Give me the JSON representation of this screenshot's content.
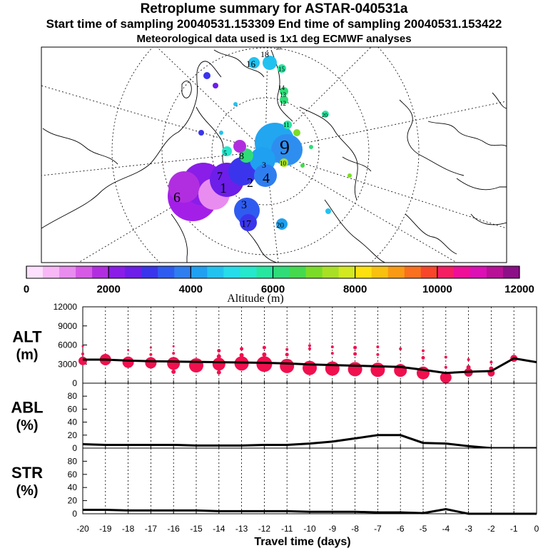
{
  "titles": {
    "main": "Retroplume summary for ASTAR-040531a",
    "sampling": "Start time of sampling 20040531.153309      End time of sampling 20040531.153422",
    "meteo": "Meteorological data used is 1x1 deg ECMWF analyses"
  },
  "colors": {
    "colorbar": [
      "#fde0fd",
      "#f8b8f6",
      "#e98cf0",
      "#d65ae6",
      "#b12ee0",
      "#8a1de8",
      "#6d1ee8",
      "#3a35ec",
      "#2f5cf0",
      "#2e7ef0",
      "#1fa0f0",
      "#22c2f0",
      "#26dcea",
      "#25e8cc",
      "#27e6a0",
      "#2fdc78",
      "#45d94e",
      "#7bdc28",
      "#a8e025",
      "#d2e820",
      "#fde10f",
      "#f8c00f",
      "#f99a14",
      "#f9701e",
      "#f7462a",
      "#f51e62",
      "#ee0e98",
      "#dc10b4",
      "#b91098",
      "#8c0f88"
    ],
    "altitude_dots": "#f0104e",
    "line": "#000000"
  },
  "colorbar": {
    "ticks": [
      "0",
      "2000",
      "4000",
      "6000",
      "8000",
      "10000",
      "12000"
    ],
    "label": "Altitude (m)"
  },
  "map": {
    "labels": [
      {
        "id": "m1",
        "text": "1"
      },
      {
        "id": "m2",
        "text": "2"
      },
      {
        "id": "m3",
        "text": "3"
      },
      {
        "id": "m4",
        "text": "4"
      },
      {
        "id": "m5",
        "text": "5"
      },
      {
        "id": "m6",
        "text": "6"
      },
      {
        "id": "m7",
        "text": "7"
      },
      {
        "id": "m8",
        "text": "8"
      },
      {
        "id": "m9",
        "text": "9"
      },
      {
        "id": "m10",
        "text": "10"
      },
      {
        "id": "m11",
        "text": "11"
      },
      {
        "id": "m12",
        "text": "12"
      },
      {
        "id": "m13",
        "text": "13"
      },
      {
        "id": "m14",
        "text": "14"
      },
      {
        "id": "m15",
        "text": "15"
      },
      {
        "id": "m16",
        "text": "16"
      },
      {
        "id": "m17",
        "text": "17"
      },
      {
        "id": "m18",
        "text": "18"
      },
      {
        "id": "m19",
        "text": "19"
      },
      {
        "id": "m20",
        "text": "20"
      }
    ]
  },
  "chart_data": [
    {
      "type": "scatter",
      "panel": "ALT",
      "ylabel": "ALT\n(m)",
      "ylabel_lines": [
        "ALT",
        "(m)"
      ],
      "ylim": [
        0,
        12000
      ],
      "yticks": [
        "0",
        "3000",
        "6000",
        "9000",
        "12000"
      ],
      "x": [
        -20,
        -19,
        -18,
        -17,
        -16,
        -15,
        -14,
        -13,
        -12,
        -11,
        -10,
        -9,
        -8,
        -7,
        -6,
        -5,
        -4,
        -3,
        -2,
        -1,
        0
      ],
      "mean_altitude_line": [
        3700,
        3700,
        3550,
        3450,
        3400,
        3350,
        3300,
        3250,
        3200,
        3100,
        2950,
        2850,
        2750,
        2650,
        2550,
        2100,
        1600,
        1800,
        1900,
        3900,
        3300
      ],
      "plume_center_altitude": [
        3500,
        3700,
        3300,
        3200,
        3100,
        2800,
        3000,
        3100,
        3000,
        2700,
        2400,
        2300,
        2200,
        2100,
        2000,
        1600,
        900,
        1700,
        1600,
        3900,
        null
      ],
      "plume_center_size": [
        6,
        8,
        8,
        8,
        9,
        10,
        9,
        10,
        11,
        10,
        10,
        10,
        10,
        10,
        9,
        9,
        8,
        6,
        5,
        5,
        null
      ],
      "scatter_points": [
        {
          "x": -20,
          "alt": 5800,
          "r": 1.5
        },
        {
          "x": -20,
          "alt": 4600,
          "r": 2
        },
        {
          "x": -18,
          "alt": 5200,
          "r": 1.5
        },
        {
          "x": -17,
          "alt": 5600,
          "r": 1.5
        },
        {
          "x": -17,
          "alt": 4500,
          "r": 2
        },
        {
          "x": -16,
          "alt": 5800,
          "r": 1.5
        },
        {
          "x": -16,
          "alt": 4700,
          "r": 2
        },
        {
          "x": -16,
          "alt": 1800,
          "r": 3
        },
        {
          "x": -14,
          "alt": 5100,
          "r": 2.5
        },
        {
          "x": -14,
          "alt": 4200,
          "r": 3
        },
        {
          "x": -14,
          "alt": 1700,
          "r": 3
        },
        {
          "x": -13,
          "alt": 5400,
          "r": 2.5
        },
        {
          "x": -13,
          "alt": 4400,
          "r": 3
        },
        {
          "x": -12,
          "alt": 5600,
          "r": 2.5
        },
        {
          "x": -12,
          "alt": 4500,
          "r": 3
        },
        {
          "x": -11,
          "alt": 5300,
          "r": 2
        },
        {
          "x": -11,
          "alt": 4500,
          "r": 2.5
        },
        {
          "x": -10,
          "alt": 5900,
          "r": 2
        },
        {
          "x": -10,
          "alt": 5400,
          "r": 2
        },
        {
          "x": -9,
          "alt": 5700,
          "r": 2
        },
        {
          "x": -9,
          "alt": 4700,
          "r": 2
        },
        {
          "x": -8,
          "alt": 5600,
          "r": 2.5
        },
        {
          "x": -8,
          "alt": 4600,
          "r": 2.5
        },
        {
          "x": -7,
          "alt": 5700,
          "r": 2
        },
        {
          "x": -7,
          "alt": 4500,
          "r": 2
        },
        {
          "x": -6,
          "alt": 5400,
          "r": 2
        },
        {
          "x": -5,
          "alt": 5100,
          "r": 2
        },
        {
          "x": -5,
          "alt": 4000,
          "r": 2.5
        },
        {
          "x": -4,
          "alt": 4100,
          "r": 2
        },
        {
          "x": -4,
          "alt": 2500,
          "r": 2
        },
        {
          "x": -3,
          "alt": 3700,
          "r": 2
        },
        {
          "x": -3,
          "alt": 2500,
          "r": 3
        },
        {
          "x": -2,
          "alt": 3300,
          "r": 2
        },
        {
          "x": -2,
          "alt": 2300,
          "r": 3
        }
      ]
    },
    {
      "type": "line",
      "panel": "ABL",
      "ylabel_lines": [
        "ABL",
        "(%)"
      ],
      "ylim": [
        0,
        100
      ],
      "yticks": [
        "0",
        "20",
        "40",
        "60",
        "80"
      ],
      "x": [
        -20,
        -19,
        -18,
        -17,
        -16,
        -15,
        -14,
        -13,
        -12,
        -11,
        -10,
        -9,
        -8,
        -7,
        -6,
        -5,
        -4,
        -3,
        -2,
        -1,
        0
      ],
      "values": [
        6,
        5,
        5,
        5,
        5,
        4,
        4,
        4,
        5,
        5,
        7,
        10,
        15,
        20,
        20,
        8,
        7,
        3,
        0,
        0,
        0
      ]
    },
    {
      "type": "line",
      "panel": "STR",
      "ylabel_lines": [
        "STR",
        "(%)"
      ],
      "ylim": [
        0,
        100
      ],
      "yticks": [
        "0",
        "20",
        "40",
        "60",
        "80"
      ],
      "x": [
        -20,
        -19,
        -18,
        -17,
        -16,
        -15,
        -14,
        -13,
        -12,
        -11,
        -10,
        -9,
        -8,
        -7,
        -6,
        -5,
        -4,
        -3,
        -2,
        -1,
        0
      ],
      "values": [
        6,
        6,
        5,
        5,
        5,
        5,
        4,
        4,
        4,
        4,
        3,
        3,
        3,
        2,
        2,
        1,
        7,
        0,
        0,
        0,
        0
      ]
    }
  ],
  "x_axis": {
    "ticks": [
      "-20",
      "-19",
      "-18",
      "-17",
      "-16",
      "-15",
      "-14",
      "-13",
      "-12",
      "-11",
      "-10",
      "-9",
      "-8",
      "-7",
      "-6",
      "-5",
      "-4",
      "-3",
      "-2",
      "-1",
      "0"
    ],
    "label": "Travel time (days)"
  }
}
